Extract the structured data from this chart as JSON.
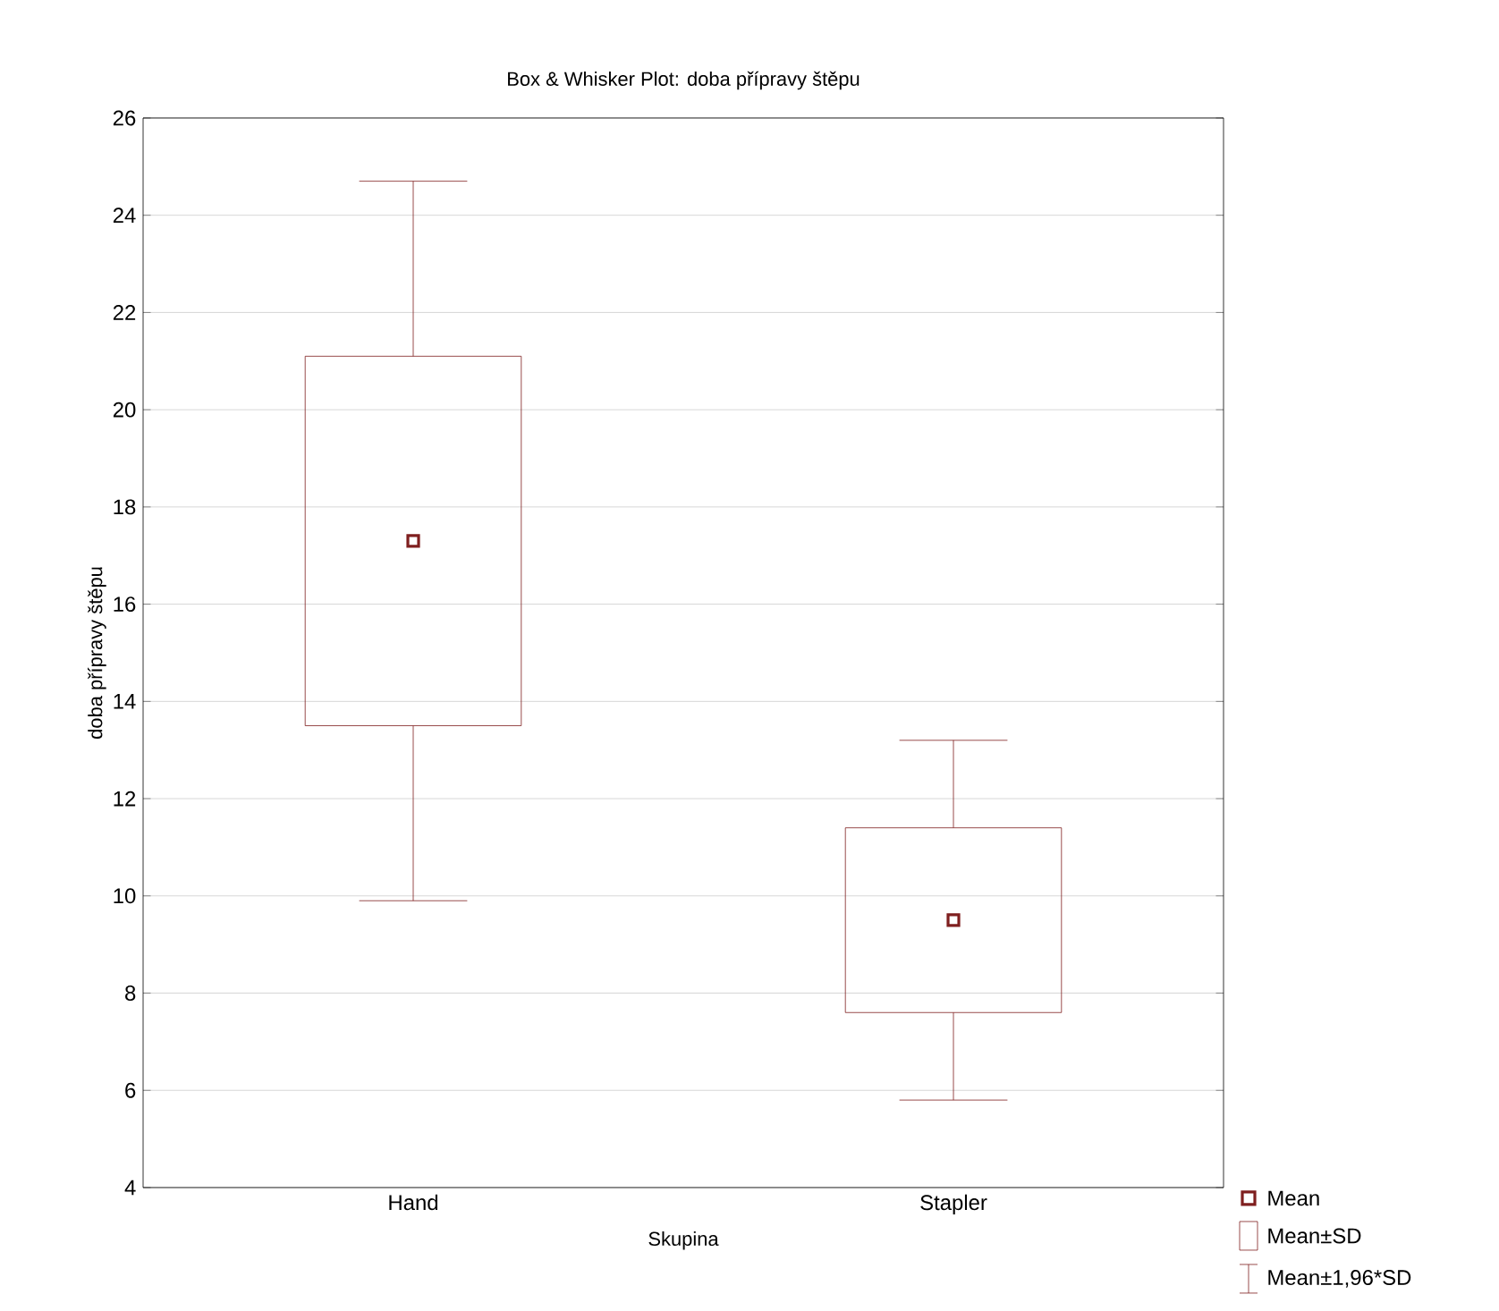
{
  "chart_data": {
    "type": "box",
    "title": "Box & Whisker Plot: doba přípravy štěpu",
    "xlabel": "Skupina",
    "ylabel": "doba přípravy štěpu",
    "categories": [
      "Hand",
      "Stapler"
    ],
    "boxes": [
      {
        "low": 9.9,
        "q1": 13.5,
        "median": 17.3,
        "q3": 21.1,
        "high": 24.7
      },
      {
        "low": 5.8,
        "q1": 7.6,
        "median": 9.5,
        "q3": 11.4,
        "high": 13.2
      }
    ],
    "color": "#7f1f1f",
    "ylim": [
      4,
      26
    ],
    "yticks": [
      4,
      6,
      8,
      10,
      12,
      14,
      16,
      18,
      20,
      22,
      24,
      26
    ],
    "grid": "y",
    "annotations": [
      "Mean",
      "Mean±SD",
      "Mean±1,96*SD"
    ]
  }
}
